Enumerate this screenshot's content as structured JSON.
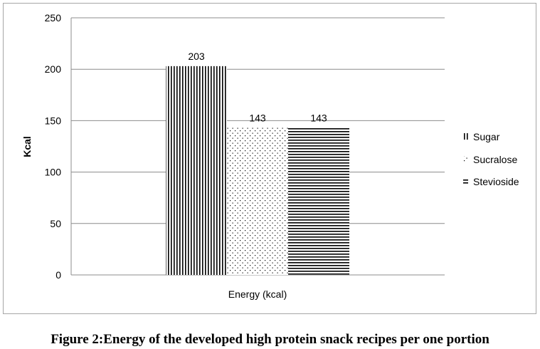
{
  "chart_data": {
    "type": "bar",
    "categories": [
      "Energy (kcal)"
    ],
    "series": [
      {
        "name": "Sugar",
        "values": [
          203
        ],
        "pattern": "vertical-lines"
      },
      {
        "name": "Sucralose",
        "values": [
          143
        ],
        "pattern": "dots"
      },
      {
        "name": "Stevioside",
        "values": [
          143
        ],
        "pattern": "horizontal-lines"
      }
    ],
    "ylabel": "Kcal",
    "ylim": [
      0,
      250
    ],
    "yticks": [
      0,
      50,
      100,
      150,
      200,
      250
    ],
    "grid": true,
    "legend_position": "right",
    "data_labels": [
      "203",
      "143",
      "143"
    ]
  },
  "caption": "Figure 2:Energy of the developed high protein snack recipes per one portion"
}
